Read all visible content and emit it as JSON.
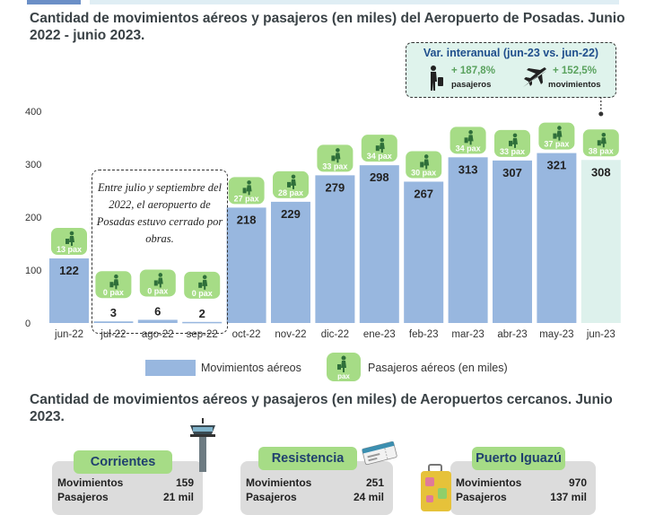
{
  "title": "Cantidad de movimientos aéreos y pasajeros (en miles) del Aeropuerto de Posadas. Junio 2022 - junio 2023.",
  "title2": "Cantidad de movimientos aéreos y pasajeros (en miles) de Aeropuertos cercanos. Junio 2023.",
  "colors": {
    "bar": "#98b7df",
    "bar_last": "#ddf1ec",
    "pax_badge": "#a6dc86",
    "pax_text": "#ffffff"
  },
  "chart_data": {
    "type": "bar",
    "categories": [
      "jun-22",
      "jul-22",
      "ago-22",
      "sep-22",
      "oct-22",
      "nov-22",
      "dic-22",
      "ene-23",
      "feb-23",
      "mar-23",
      "abr-23",
      "may-23",
      "jun-23"
    ],
    "series": [
      {
        "name": "Movimientos aéreos",
        "values": [
          122,
          3,
          6,
          2,
          218,
          229,
          279,
          298,
          267,
          313,
          307,
          321,
          308
        ]
      },
      {
        "name": "Pasajeros aéreos (en miles)",
        "values": [
          13,
          0,
          0,
          0,
          27,
          28,
          33,
          34,
          30,
          34,
          33,
          37,
          38
        ]
      }
    ],
    "data_labels": [
      "122",
      "3",
      "6",
      "2",
      "218",
      "229",
      "279",
      "298",
      "267",
      "313",
      "307",
      "321",
      "308"
    ],
    "pax_labels": [
      "13 pax",
      "0 pax",
      "0 pax",
      "0 pax",
      "27 pax",
      "28 pax",
      "33 pax",
      "34 pax",
      "30 pax",
      "34 pax",
      "33 pax",
      "37 pax",
      "38 pax"
    ],
    "yticks": [
      "0",
      "100",
      "200",
      "300",
      "400"
    ],
    "ylim": [
      0,
      400
    ],
    "grid": false,
    "legend": "bottom"
  },
  "note": "Entre julio y septiembre del 2022, el aeropuerto de Posadas estuvo cerrado por obras.",
  "variation": {
    "title": "Var. interanual (jun-23 vs. jun-22)",
    "pasajeros_value": "+ 187,8%",
    "pasajeros_label": "pasajeros",
    "movimientos_value": "+ 152,5%",
    "movimientos_label": "movimientos",
    "icons": [
      "traveler-icon",
      "airplane-icon"
    ]
  },
  "legend": {
    "bar_label": "Movimientos aéreos",
    "pax_badge_text": "pax",
    "pax_label": "Pasajeros aéreos (en miles)"
  },
  "airports": [
    {
      "name": "Corrientes",
      "row1_label": "Movimientos",
      "row1_value": "159",
      "row2_label": "Pasajeros",
      "row2_value": "21 mil",
      "icon": "control-tower-icon"
    },
    {
      "name": "Resistencia",
      "row1_label": "Movimientos",
      "row1_value": "251",
      "row2_label": "Pasajeros",
      "row2_value": "24 mil",
      "icon": "boarding-pass-icon"
    },
    {
      "name": "Puerto Iguazú",
      "row1_label": "Movimientos",
      "row1_value": "970",
      "row2_label": "Pasajeros",
      "row2_value": "137 mil",
      "icon": "suitcase-icon"
    }
  ]
}
